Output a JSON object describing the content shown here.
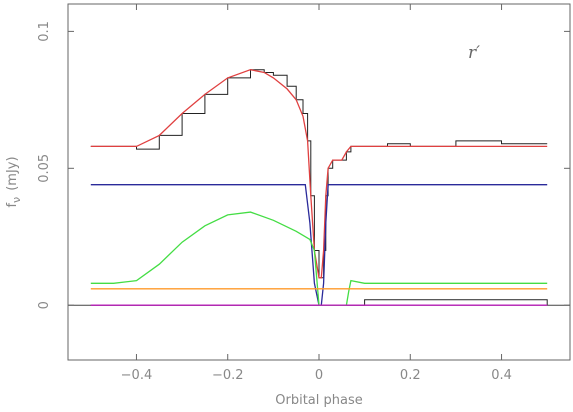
{
  "chart_data": {
    "type": "line",
    "title": "",
    "band_label": "r′",
    "xlabel": "Orbital phase",
    "ylabel": "f",
    "ylabel_sub": "ν",
    "ylabel_unit": "(mJy)",
    "xlim": [
      -0.55,
      0.55
    ],
    "ylim": [
      -0.02,
      0.11
    ],
    "x_ticks": [
      -0.4,
      -0.2,
      0,
      0.2,
      0.4
    ],
    "x_tick_labels": [
      "−0.4",
      "−0.2",
      "0",
      "0.2",
      "0.4"
    ],
    "y_ticks": [
      0,
      0.05,
      0.1
    ],
    "y_tick_labels": [
      "0",
      "0.05",
      "0.1"
    ],
    "grid": false,
    "zero_line": 0,
    "series": [
      {
        "role": "observed light curve",
        "style": "step",
        "color": "#222222",
        "x": [
          -0.5,
          -0.45,
          -0.4,
          -0.35,
          -0.3,
          -0.25,
          -0.2,
          -0.15,
          -0.12,
          -0.1,
          -0.07,
          -0.05,
          -0.035,
          -0.025,
          -0.018,
          -0.01,
          0.0,
          0.005,
          0.01,
          0.015,
          0.02,
          0.03,
          0.05,
          0.06,
          0.07,
          0.1,
          0.15,
          0.2,
          0.3,
          0.4,
          0.5
        ],
        "values": [
          0.058,
          0.058,
          0.057,
          0.062,
          0.07,
          0.077,
          0.083,
          0.086,
          0.085,
          0.084,
          0.08,
          0.075,
          0.07,
          0.06,
          0.04,
          0.02,
          0.01,
          0.01,
          0.02,
          0.04,
          0.05,
          0.053,
          0.053,
          0.056,
          0.058,
          0.058,
          0.059,
          0.058,
          0.06,
          0.059,
          0.059
        ]
      },
      {
        "role": "residuals",
        "style": "step",
        "color": "#222222",
        "x": [
          -0.5,
          -0.3,
          -0.1,
          0.0,
          0.1,
          0.3,
          0.5
        ],
        "values": [
          0.0,
          0.0,
          0.0,
          0.0,
          0.002,
          0.002,
          0.0
        ]
      },
      {
        "role": "total model",
        "color": "#e04040",
        "x": [
          -0.5,
          -0.45,
          -0.4,
          -0.35,
          -0.3,
          -0.25,
          -0.2,
          -0.15,
          -0.12,
          -0.1,
          -0.07,
          -0.05,
          -0.035,
          -0.025,
          -0.018,
          -0.01,
          0.0,
          0.005,
          0.01,
          0.015,
          0.02,
          0.03,
          0.05,
          0.06,
          0.07,
          0.1,
          0.2,
          0.3,
          0.4,
          0.5
        ],
        "values": [
          0.058,
          0.058,
          0.058,
          0.062,
          0.07,
          0.077,
          0.083,
          0.086,
          0.085,
          0.083,
          0.079,
          0.075,
          0.069,
          0.06,
          0.04,
          0.02,
          0.01,
          0.01,
          0.02,
          0.04,
          0.05,
          0.053,
          0.053,
          0.056,
          0.058,
          0.058,
          0.058,
          0.058,
          0.058,
          0.058
        ]
      },
      {
        "role": "component (blue)",
        "color": "#2a2a9a",
        "x": [
          -0.5,
          -0.03,
          -0.02,
          -0.01,
          0.0,
          0.005,
          0.01,
          0.015,
          0.02,
          0.5
        ],
        "values": [
          0.044,
          0.044,
          0.03,
          0.008,
          0.0,
          0.0,
          0.008,
          0.03,
          0.044,
          0.044
        ]
      },
      {
        "role": "component (green)",
        "color": "#44dd44",
        "x": [
          -0.5,
          -0.45,
          -0.4,
          -0.35,
          -0.3,
          -0.25,
          -0.2,
          -0.15,
          -0.1,
          -0.05,
          -0.02,
          -0.01,
          0.0,
          0.06,
          0.065,
          0.07,
          0.1,
          0.2,
          0.3,
          0.4,
          0.5
        ],
        "values": [
          0.008,
          0.008,
          0.009,
          0.015,
          0.023,
          0.029,
          0.033,
          0.034,
          0.031,
          0.027,
          0.024,
          0.02,
          0.0,
          0.0,
          0.005,
          0.009,
          0.008,
          0.008,
          0.008,
          0.008,
          0.008
        ]
      },
      {
        "role": "component (orange)",
        "color": "#ff9a2a",
        "x": [
          -0.5,
          0.5
        ],
        "values": [
          0.006,
          0.006
        ]
      },
      {
        "role": "component (magenta)",
        "color": "#bb22bb",
        "x": [
          -0.5,
          0.5
        ],
        "values": [
          0.0,
          0.0
        ]
      }
    ]
  }
}
